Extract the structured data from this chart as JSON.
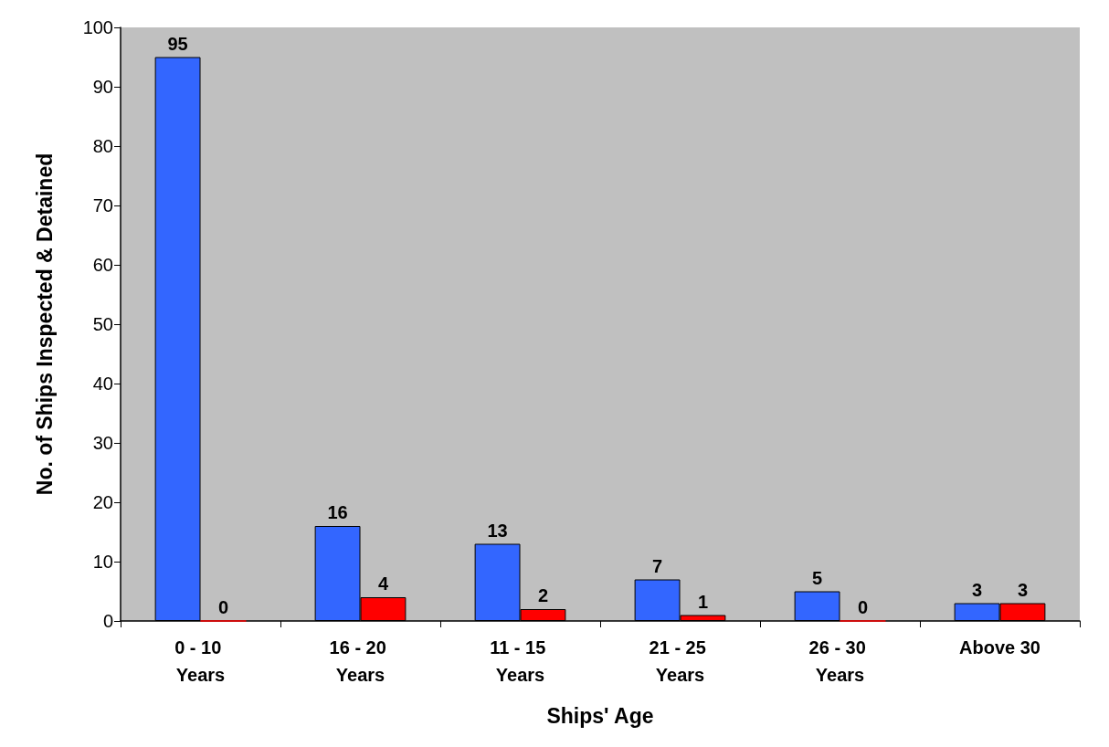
{
  "chart_data": {
    "type": "bar",
    "xlabel": "Ships' Age",
    "ylabel": "No. of Ships Inspected & Detained",
    "categories": [
      "0 - 10 Years",
      "16 - 20 Years",
      "11 - 15 Years",
      "21 - 25 Years",
      "26 - 30 Years",
      "Above 30"
    ],
    "series": [
      {
        "color": "#3366ff",
        "values": [
          95,
          16,
          13,
          7,
          5,
          3
        ]
      },
      {
        "color": "#ff0000",
        "values": [
          0,
          4,
          2,
          1,
          0,
          3
        ]
      }
    ],
    "ylim": [
      0,
      100
    ],
    "yticks": [
      0,
      10,
      20,
      30,
      40,
      50,
      60,
      70,
      80,
      90,
      100
    ],
    "grid": false,
    "data_labels": true
  }
}
